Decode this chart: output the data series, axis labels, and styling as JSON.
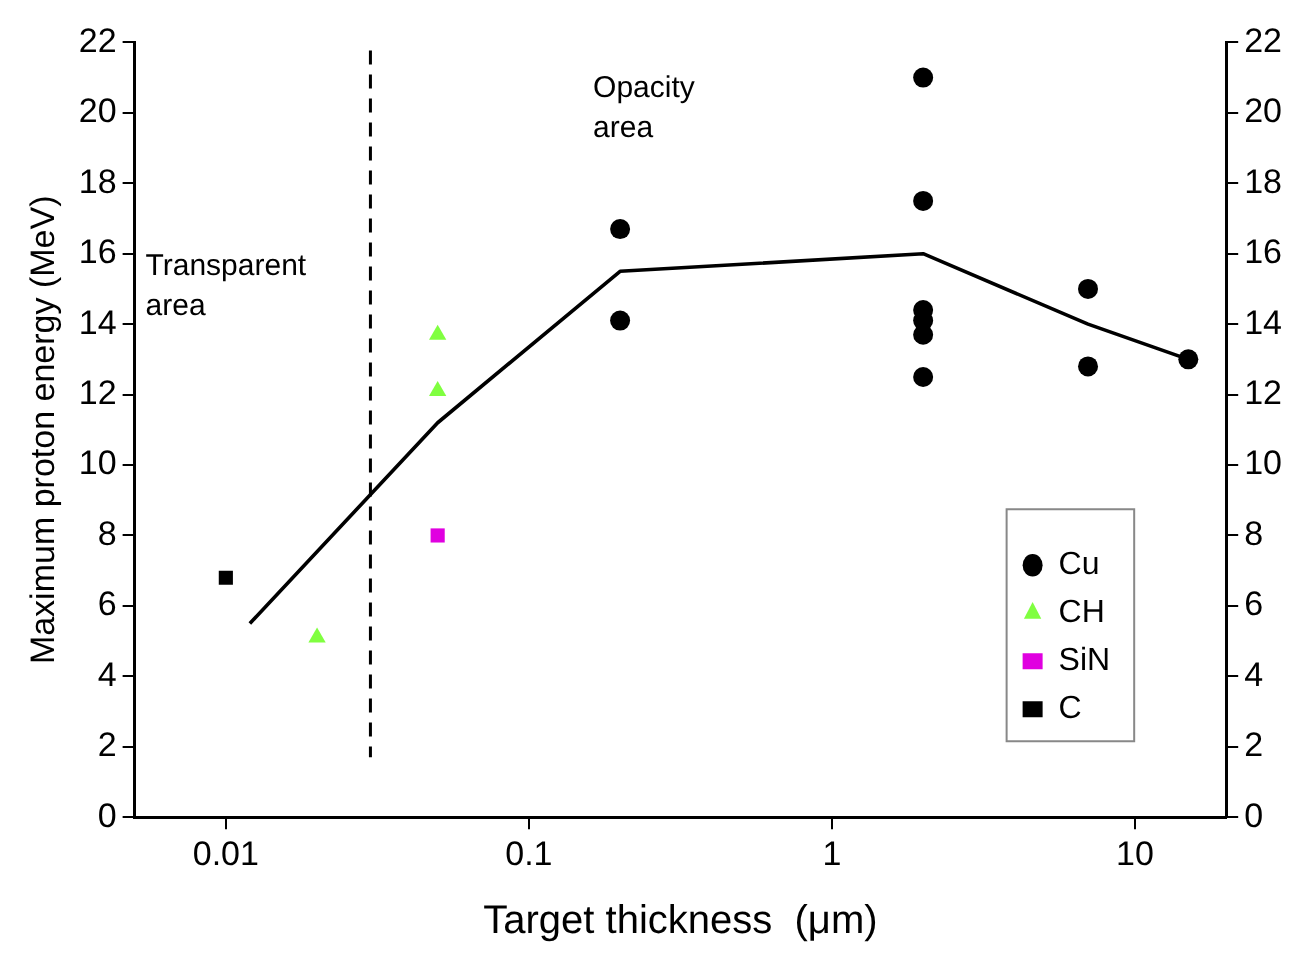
{
  "chart_data": {
    "type": "scatter",
    "xlabel": "Target thickness  (μm)",
    "ylabel": "Maximum proton energy (MeV)",
    "log": "x",
    "xlim": [
      0.005,
      20
    ],
    "xticks": [
      0.01,
      0.1,
      1,
      10
    ],
    "ylim": [
      0,
      22
    ],
    "yticks": [
      0,
      2,
      4,
      6,
      8,
      10,
      12,
      14,
      16,
      18,
      20,
      22
    ],
    "y2lim": [
      0,
      22
    ],
    "y2ticks": [
      0,
      2,
      4,
      6,
      8,
      10,
      12,
      14,
      16,
      18,
      20,
      22
    ],
    "grid": false,
    "legend": "bottom right",
    "series": [
      {
        "name": "Cu",
        "marker": "circle",
        "color": "#000000",
        "x": [
          0.2,
          0.2,
          2,
          2,
          2,
          2,
          2,
          2,
          7,
          7,
          15
        ],
        "values": [
          16.7,
          14.1,
          21,
          17.5,
          14.4,
          14.1,
          13.7,
          12.5,
          15,
          12.8,
          13
        ]
      },
      {
        "name": "CH",
        "marker": "triangle",
        "color": "#80ff40",
        "x": [
          0.02,
          0.05,
          0.05
        ],
        "values": [
          5.1,
          13.7,
          12.1
        ]
      },
      {
        "name": "SiN",
        "marker": "square",
        "color": "#e000e0",
        "x": [
          0.05
        ],
        "values": [
          8
        ]
      },
      {
        "name": "C",
        "marker": "square",
        "color": "#000000",
        "x": [
          0.01
        ],
        "values": [
          6.8
        ]
      },
      {
        "type": "line",
        "marker": "none",
        "color": "#000000",
        "x": [
          0.012,
          0.05,
          0.2,
          2,
          7,
          15
        ],
        "values": [
          5.5,
          11.2,
          15.5,
          16,
          14,
          13
        ]
      }
    ],
    "ref_lines": [
      {
        "axis": "x",
        "value": 0.03,
        "line_style": "dashed",
        "color": "#000000"
      }
    ],
    "annotations": [
      "Transparent area",
      "Opacity area"
    ]
  }
}
